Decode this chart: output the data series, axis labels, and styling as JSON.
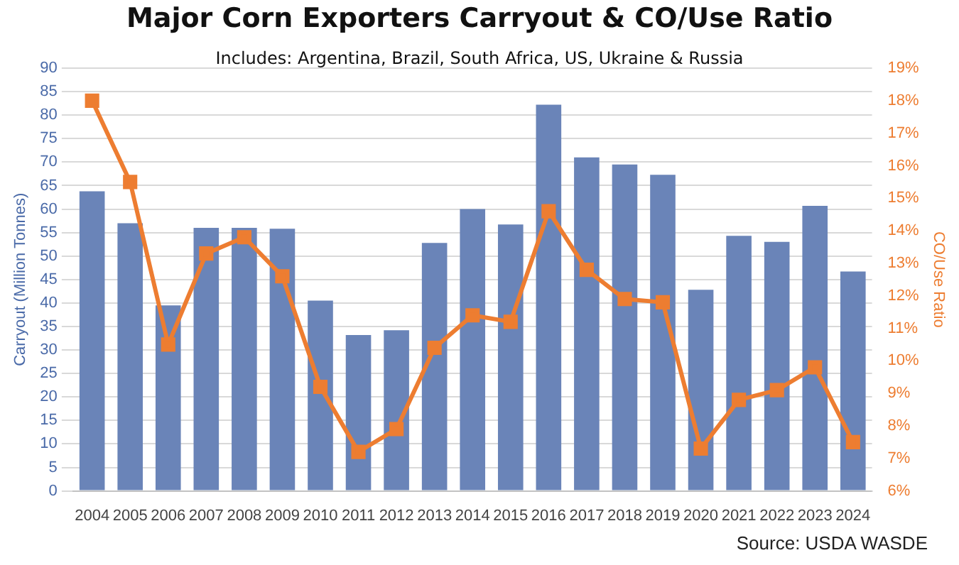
{
  "chart_data": {
    "type": "bar",
    "title": "Major Corn Exporters Carryout & CO/Use Ratio",
    "subtitle": "Includes: Argentina, Brazil, South Africa, US, Ukraine & Russia",
    "ylabel": "Carryout (Million Tonnes)",
    "y2label": "CO/Use Ratio",
    "annotations": [
      "Source: USDA WASDE"
    ],
    "categories": [
      "2004",
      "2005",
      "2006",
      "2007",
      "2008",
      "2009",
      "2010",
      "2011",
      "2012",
      "2013",
      "2014",
      "2015",
      "2016",
      "2017",
      "2018",
      "2019",
      "2020",
      "2021",
      "2022",
      "2023",
      "2024"
    ],
    "series": [
      {
        "color": "#6a84b8",
        "values": [
          63.8,
          57,
          39.5,
          56,
          56,
          55.8,
          40.5,
          33.2,
          34.2,
          52.8,
          60,
          56.7,
          82.2,
          71,
          69.5,
          67.3,
          42.8,
          54.3,
          53,
          60.7,
          46.7
        ]
      },
      {
        "type": "line",
        "axis": "y2",
        "color": "#ed7d31",
        "marker": "square",
        "values": [
          18.0,
          15.5,
          10.5,
          13.3,
          13.8,
          12.6,
          9.2,
          7.2,
          7.9,
          10.4,
          11.4,
          11.2,
          14.6,
          12.8,
          11.9,
          11.8,
          7.3,
          8.8,
          9.1,
          9.8,
          7.5
        ]
      }
    ],
    "ylim": [
      0,
      90
    ],
    "yticks": [
      0,
      5,
      10,
      15,
      20,
      25,
      30,
      35,
      40,
      45,
      50,
      55,
      60,
      65,
      70,
      75,
      80,
      85,
      90
    ],
    "y2lim": [
      6,
      19
    ],
    "y2ticks": [
      {
        "value": 6,
        "label": "6%"
      },
      {
        "value": 7,
        "label": "7%"
      },
      {
        "value": 8,
        "label": "8%"
      },
      {
        "value": 9,
        "label": "9%"
      },
      {
        "value": 10,
        "label": "10%"
      },
      {
        "value": 11,
        "label": "11%"
      },
      {
        "value": 12,
        "label": "12%"
      },
      {
        "value": 13,
        "label": "13%"
      },
      {
        "value": 14,
        "label": "14%"
      },
      {
        "value": 15,
        "label": "15%"
      },
      {
        "value": 16,
        "label": "16%"
      },
      {
        "value": 17,
        "label": "17%"
      },
      {
        "value": 18,
        "label": "18%"
      },
      {
        "value": 19,
        "label": "19%"
      }
    ],
    "grid": "y",
    "legend": false
  }
}
